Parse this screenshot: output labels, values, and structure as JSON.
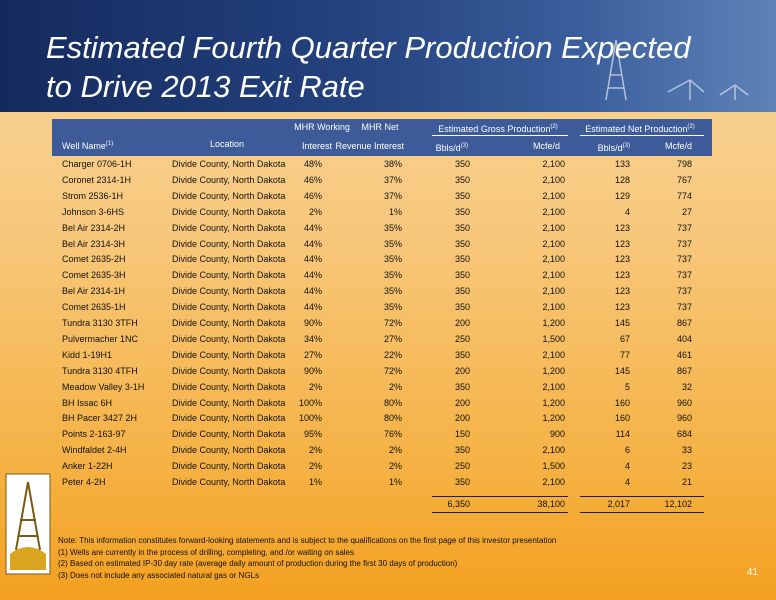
{
  "title": {
    "lines": [
      "Estimated Fourth Quarter Production Expected",
      "to Drive 2013 Exit Rate"
    ]
  },
  "table": {
    "header": {
      "well_name": "Well Name",
      "well_name_note": "(1)",
      "location": "Location",
      "working_top": "MHR Working",
      "working_bottom": "Interest",
      "net_top": "MHR Net",
      "net_bottom": "Revenue Interest",
      "gross_group": "Estimated Gross Production",
      "gross_group_note": "(2)",
      "net_group": "Estimated Net Production",
      "net_group_note": "(2)",
      "gross_bbls": "Bbls/d",
      "gross_bbls_note": "(3)",
      "gross_mcfe": "Mcfe/d",
      "net_bbls": "Bbls/d",
      "net_bbls_note": "(3)",
      "net_mcfe": "Mcfe/d"
    },
    "rows": [
      [
        "Charger 0706-1H",
        "Divide County, North Dakota",
        "48%",
        "38%",
        "350",
        "2,100",
        "133",
        "798"
      ],
      [
        "Coronet 2314-1H",
        "Divide County, North Dakota",
        "46%",
        "37%",
        "350",
        "2,100",
        "128",
        "767"
      ],
      [
        "Strom 2536-1H",
        "Divide County, North Dakota",
        "46%",
        "37%",
        "350",
        "2,100",
        "129",
        "774"
      ],
      [
        "Johnson 3-6HS",
        "Divide County, North Dakota",
        "2%",
        "1%",
        "350",
        "2,100",
        "4",
        "27"
      ],
      [
        "Bel Air 2314-2H",
        "Divide County, North Dakota",
        "44%",
        "35%",
        "350",
        "2,100",
        "123",
        "737"
      ],
      [
        "Bel Air 2314-3H",
        "Divide County, North Dakota",
        "44%",
        "35%",
        "350",
        "2,100",
        "123",
        "737"
      ],
      [
        "Comet 2635-2H",
        "Divide County, North Dakota",
        "44%",
        "35%",
        "350",
        "2,100",
        "123",
        "737"
      ],
      [
        "Comet 2635-3H",
        "Divide County, North Dakota",
        "44%",
        "35%",
        "350",
        "2,100",
        "123",
        "737"
      ],
      [
        "Bel Air 2314-1H",
        "Divide County, North Dakota",
        "44%",
        "35%",
        "350",
        "2,100",
        "123",
        "737"
      ],
      [
        "Comet 2635-1H",
        "Divide County, North Dakota",
        "44%",
        "35%",
        "350",
        "2,100",
        "123",
        "737"
      ],
      [
        "Tundra 3130 3TFH",
        "Divide County, North Dakota",
        "90%",
        "72%",
        "200",
        "1,200",
        "145",
        "867"
      ],
      [
        "Pulvermacher 1NC",
        "Divide County, North Dakota",
        "34%",
        "27%",
        "250",
        "1,500",
        "67",
        "404"
      ],
      [
        "Kidd 1-19H1",
        "Divide County, North Dakota",
        "27%",
        "22%",
        "350",
        "2,100",
        "77",
        "461"
      ],
      [
        "Tundra 3130 4TFH",
        "Divide County, North Dakota",
        "90%",
        "72%",
        "200",
        "1,200",
        "145",
        "867"
      ],
      [
        "Meadow Valley 3-1H",
        "Divide County, North Dakota",
        "2%",
        "2%",
        "350",
        "2,100",
        "5",
        "32"
      ],
      [
        "BH Issac 6H",
        "Divide County, North Dakota",
        "100%",
        "80%",
        "200",
        "1,200",
        "160",
        "960"
      ],
      [
        "BH Pacer 3427 2H",
        "Divide County, North Dakota",
        "100%",
        "80%",
        "200",
        "1,200",
        "160",
        "960"
      ],
      [
        "Points 2-163-97",
        "Divide County, North Dakota",
        "95%",
        "76%",
        "150",
        "900",
        "114",
        "684"
      ],
      [
        "Windfaldet 2-4H",
        "Divide County, North Dakota",
        "2%",
        "2%",
        "350",
        "2,100",
        "6",
        "33"
      ],
      [
        "Anker 1-22H",
        "Divide County, North Dakota",
        "2%",
        "2%",
        "250",
        "1,500",
        "4",
        "23"
      ],
      [
        "Peter 4-2H",
        "Divide County, North Dakota",
        "1%",
        "1%",
        "350",
        "2,100",
        "4",
        "21"
      ]
    ],
    "totals": [
      "6,350",
      "38,100",
      "2,017",
      "12,102"
    ]
  },
  "notes": [
    "Note: This information constitutes forward-looking statements and is subject to the qualifications on the first page of this investor presentation",
    "(1) Wells are currently in the process of drilling, completing, and /or waiting on sales",
    "(2) Based on estimated IP-30 day rate (average daily amount of production during the first 30 days of production)",
    "(3) Does not include any associated natural gas or NGLs"
  ],
  "page_number": "41"
}
